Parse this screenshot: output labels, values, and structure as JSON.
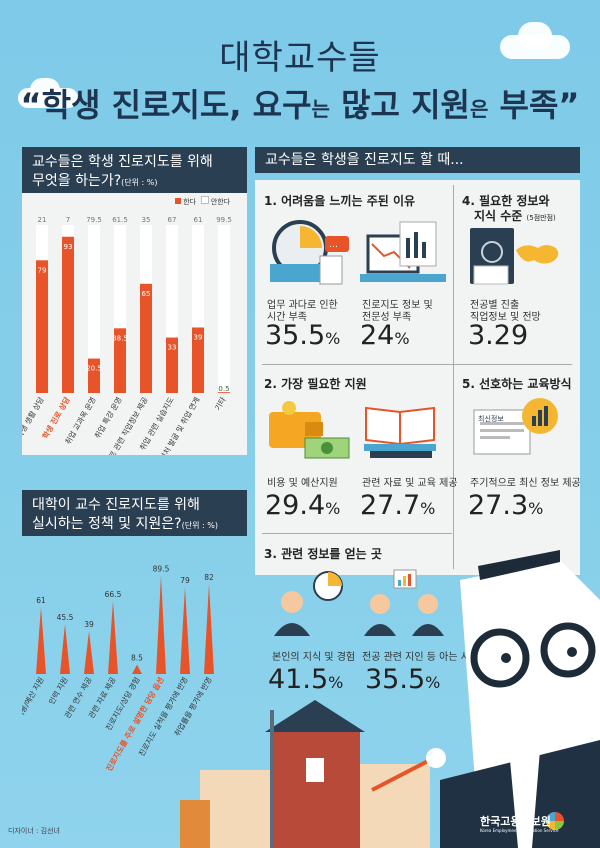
{
  "title": {
    "line1": "대학교수들",
    "line2_pre": "“학생 진로지도, 요구",
    "line2_small1": "는",
    "line2_mid": " 많고 지원",
    "line2_small2": "은",
    "line2_post": " 부족”"
  },
  "colors": {
    "accent": "#e8542a",
    "dark": "#2b3f53",
    "sky": "#7ecae8"
  },
  "chart1": {
    "header_line1": "교수들은 학생 진로지도를 위해",
    "header_line2": "무엇을 하는가?",
    "unit": "(단위 : %)",
    "legend_yes": "한다",
    "legend_no": "안한다"
  },
  "chart2": {
    "header_line1": "대학이 교수 진로지도를 위해",
    "header_line2": "실시하는 정책 및 지원은?",
    "unit": "(단위 : %)"
  },
  "chart_data": [
    {
      "type": "bar",
      "stacked": true,
      "title": "교수들은 학생 진로지도를 위해 무엇을 하는가?",
      "unit": "(단위 : %)",
      "categories": [
        "학생 생활 상담",
        "학생 진로 상담",
        "취업 교과목 운영",
        "취업 특강 운영",
        "진로 관련 직업정보 제공",
        "취업 관련 실습지도",
        "취업처 발굴 및 취업 연계",
        "기타"
      ],
      "highlight_index": 1,
      "series": [
        {
          "name": "한다",
          "values": [
            79,
            93,
            20.5,
            38.5,
            65,
            33,
            39,
            0.5
          ],
          "labels": [
            "79",
            "93",
            "20.5",
            "38.5",
            "65",
            "33",
            "39",
            "0.5"
          ]
        },
        {
          "name": "안한다",
          "values": [
            21,
            7,
            79.5,
            61.5,
            35,
            67,
            61,
            99.5
          ],
          "labels": [
            "21",
            "7",
            "79.5",
            "61.5",
            "35",
            "67",
            "61",
            "99.5"
          ]
        }
      ],
      "ylim": [
        0,
        100
      ]
    },
    {
      "type": "bar",
      "title": "대학이 교수 진로지도를 위해 실시하는 정책 및 지원은?",
      "unit": "(단위 : %)",
      "categories": [
        "비용/예산 지원",
        "인력 지원",
        "관련 연수 제공",
        "관련 자료 제공",
        "진로지도/상담 경험",
        "진로지도를 주로 설명한 담당 옵션",
        "진로지도 실적을 평가에 반영",
        "취업률을 평가에 반영"
      ],
      "highlight_index": 5,
      "values": [
        61,
        45.5,
        39,
        66.5,
        8.5,
        89.5,
        79,
        82
      ],
      "labels": [
        "61",
        "45.5",
        "39",
        "66.5",
        "8.5",
        "89.5",
        "79",
        "82"
      ],
      "ylim": [
        0,
        100
      ]
    }
  ],
  "right": {
    "header": "교수들은 학생을 진로지도 할 때...",
    "s1": {
      "title": "1. 어려움을 느끼는 주된 이유",
      "a_text1": "업무 과다로 인한",
      "a_text2": "시간 부족",
      "a_num": "35.5",
      "a_unit": "%",
      "b_text1": "진로지도 정보 및",
      "b_text2": "전문성 부족",
      "b_num": "24",
      "b_unit": "%"
    },
    "s4": {
      "title1": "4. 필요한 정보와",
      "title2": "지식 수준",
      "scale": "(5점만점)",
      "text1": "전공별 진출",
      "text2": "직업정보 및 전망",
      "num": "3.29"
    },
    "s2": {
      "title": "2. 가장 필요한 지원",
      "a_text": "비용 및 예산지원",
      "a_num": "29.4",
      "a_unit": "%",
      "b_text": "관련 자료 및 교육 제공",
      "b_num": "27.7",
      "b_unit": "%"
    },
    "s5": {
      "title": "5. 선호하는 교육방식",
      "badge": "최신정보",
      "text": "주기적으로 최신 정보 제공",
      "num": "27.3",
      "unit": "%"
    },
    "s3": {
      "title": "3. 관련 정보를 얻는 곳",
      "a_text": "본인의 지식 및 경험",
      "a_num": "41.5",
      "a_unit": "%",
      "b_text": "전공 관련 지인 등 아는 사람",
      "b_num": "35.5",
      "b_unit": "%"
    }
  },
  "footer": {
    "designer": "디자이너 : 김선녀",
    "logo": "한국고용정보원",
    "logo_sub": "Korea Employment Information Service"
  }
}
